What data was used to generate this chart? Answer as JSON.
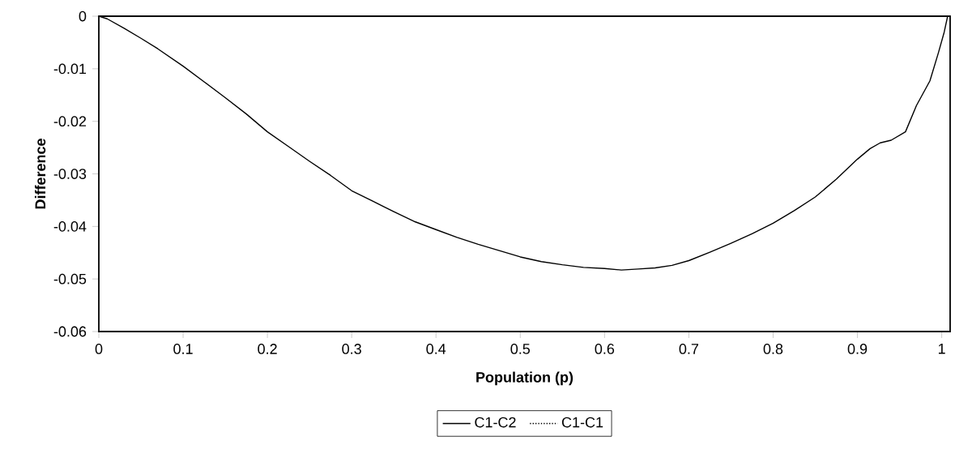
{
  "chart_data": {
    "type": "line",
    "xlabel": "Population (p)",
    "ylabel": "Difference",
    "xlim": [
      0,
      1.01
    ],
    "ylim": [
      -0.06,
      0
    ],
    "xticks": [
      0,
      0.1,
      0.2,
      0.3,
      0.4,
      0.5,
      0.6,
      0.7,
      0.8,
      0.9,
      1
    ],
    "yticks": [
      0,
      -0.01,
      -0.02,
      -0.03,
      -0.04,
      -0.05,
      -0.06
    ],
    "grid": false,
    "legend": "bottom",
    "marker": "none",
    "series": [
      {
        "name": "C1-C2",
        "color": "#000000",
        "line_style": "solid",
        "x": [
          0,
          0.01,
          0.03,
          0.05,
          0.07,
          0.1,
          0.125,
          0.15,
          0.175,
          0.2,
          0.225,
          0.25,
          0.275,
          0.3,
          0.325,
          0.35,
          0.375,
          0.4,
          0.425,
          0.45,
          0.475,
          0.5,
          0.525,
          0.55,
          0.575,
          0.6,
          0.62,
          0.64,
          0.66,
          0.68,
          0.7,
          0.725,
          0.75,
          0.775,
          0.8,
          0.825,
          0.85,
          0.875,
          0.9,
          0.915,
          0.927,
          0.94,
          0.957,
          0.97,
          0.986,
          0.996,
          1.003,
          1.007
        ],
        "values": [
          0,
          -0.0005,
          -0.0023,
          -0.0042,
          -0.0062,
          -0.0095,
          -0.0125,
          -0.0155,
          -0.0186,
          -0.022,
          -0.0248,
          -0.0276,
          -0.0303,
          -0.0332,
          -0.0352,
          -0.0372,
          -0.0391,
          -0.0406,
          -0.0421,
          -0.0434,
          -0.0446,
          -0.0458,
          -0.0467,
          -0.0473,
          -0.0478,
          -0.048,
          -0.0483,
          -0.0481,
          -0.0479,
          -0.0474,
          -0.0465,
          -0.0449,
          -0.0432,
          -0.0414,
          -0.0394,
          -0.037,
          -0.0344,
          -0.031,
          -0.0272,
          -0.0252,
          -0.0241,
          -0.0236,
          -0.022,
          -0.017,
          -0.0123,
          -0.007,
          -0.003,
          0
        ]
      },
      {
        "name": "C1-C1",
        "color": "#000000",
        "line_style": "dotted"
      }
    ]
  }
}
